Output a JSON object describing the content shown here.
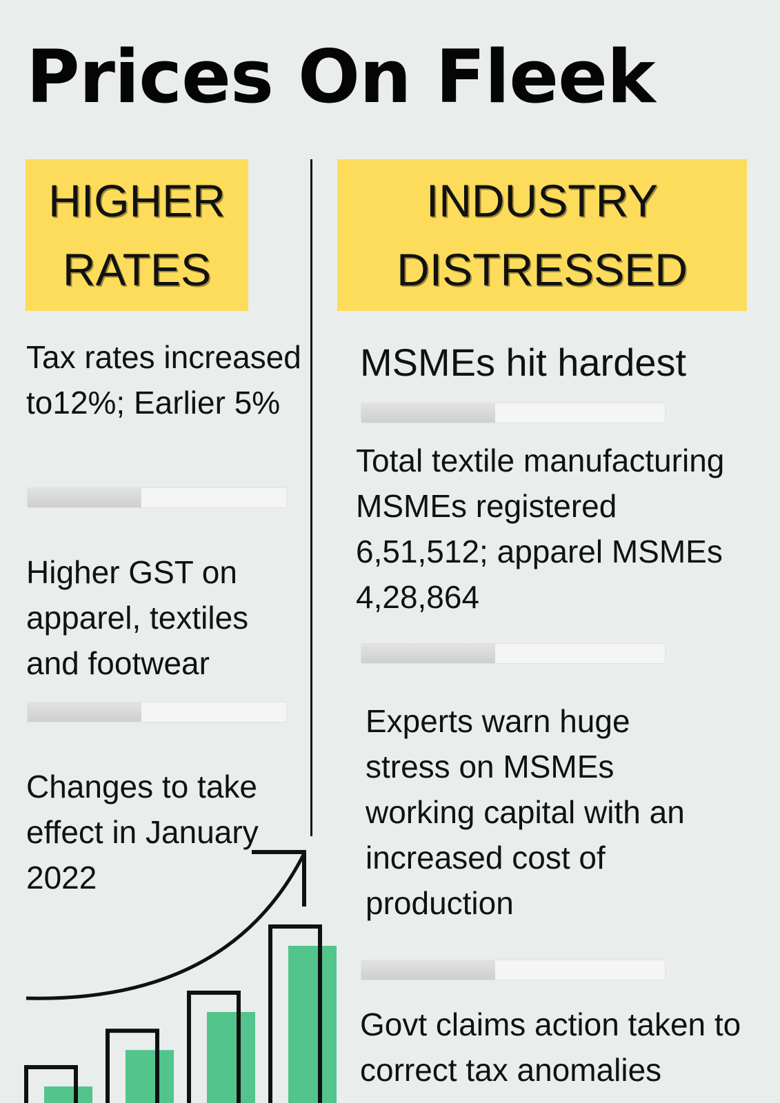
{
  "title": "Prices On Fleek",
  "left_column": {
    "heading_lines": [
      "HIGHER",
      "RATES"
    ],
    "items": [
      "Tax rates increased to12%; Earlier 5%",
      "Higher GST on apparel, textiles and footwear",
      "Changes to take effect in January 2022"
    ],
    "progress": [
      0.44,
      0.44
    ]
  },
  "right_column": {
    "heading_lines": [
      "INDUSTRY",
      "DISTRESSED"
    ],
    "subheading": "MSMEs hit hardest",
    "items": [
      "Total textile manufacturing MSMEs registered 6,51,512; apparel MSMEs 4,28,864",
      "Experts warn huge stress on MSMEs working capital with an increased cost of production",
      "Govt claims action taken to correct tax anomalies"
    ],
    "progress": [
      0.44,
      0.44,
      0.44
    ]
  },
  "illustration": {
    "icons": [
      "rising-arrow-icon",
      "bar-chart-icon"
    ],
    "colors": {
      "bars": "#52c48c",
      "outline": "#111111",
      "badge": "#fddc5c",
      "background": "#e9edec"
    },
    "bar_levels": [
      0.1,
      0.32,
      0.55,
      0.95
    ]
  }
}
